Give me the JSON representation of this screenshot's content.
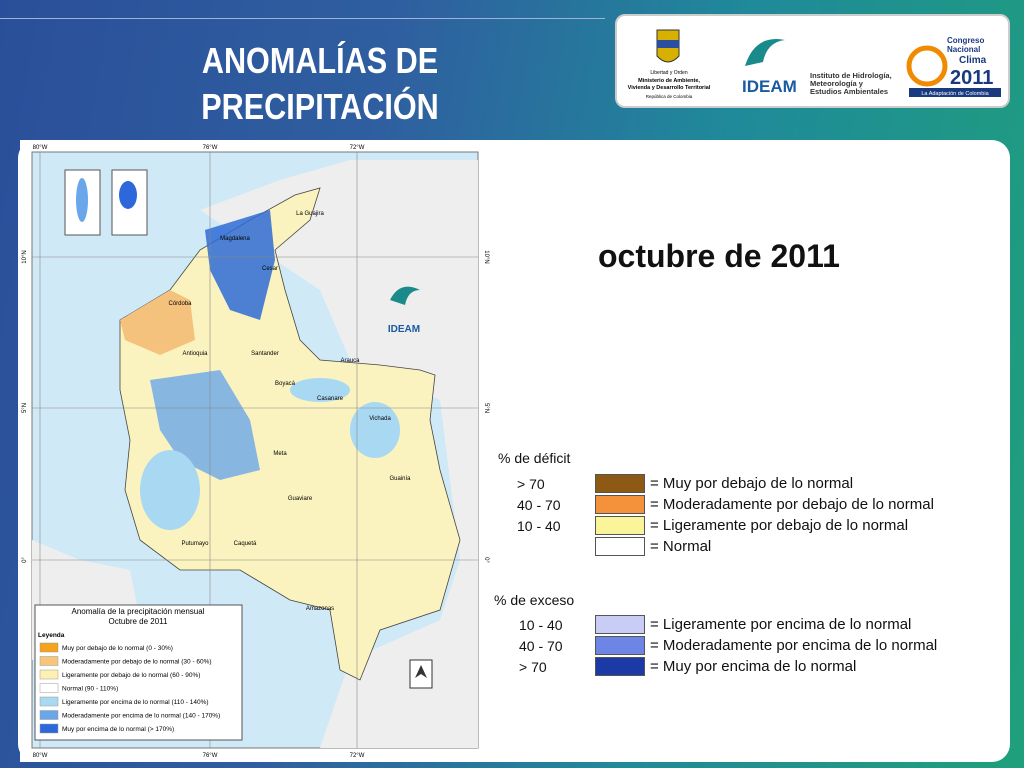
{
  "header": {
    "title_lines": [
      "ANOMALÍAS DE",
      "PRECIPITACIÓN"
    ]
  },
  "logos": {
    "ministry": [
      "Libertad y Orden",
      "Ministerio de Ambiente,",
      "Vivienda y Desarrollo Territorial",
      "República de Colombia"
    ],
    "ideam": "IDEAM",
    "ideam_name": [
      "Instituto de Hidrología,",
      "Meteorología y",
      "Estudios Ambientales"
    ],
    "congress": [
      "Congreso",
      "Nacional",
      "Clima",
      "2011",
      "La Adaptación de Colombia"
    ]
  },
  "period": "octubre de 2011",
  "deficit": {
    "heading": "% de déficit",
    "rows": [
      {
        "range": "> 70",
        "label": "= Muy por debajo de lo normal",
        "color": "#8c5a14"
      },
      {
        "range": "40 -  70",
        "label": "= Moderadamente por debajo de lo normal",
        "color": "#f3923a"
      },
      {
        "range": "10 -  40",
        "label": "= Ligeramente por debajo de lo normal",
        "color": "#fbf59a"
      },
      {
        "range": null,
        "label": "= Normal",
        "color": "#ffffff"
      }
    ]
  },
  "excess": {
    "heading": "% de exceso",
    "rows": [
      {
        "range": "10 -  40",
        "label": "= Ligeramente por encima de lo normal",
        "color": "#c9cdf6"
      },
      {
        "range": "40 -  70",
        "label": "= Moderadamente por encima de lo normal",
        "color": "#6d86e6"
      },
      {
        "range": "> 70",
        "label": "= Muy por encima de lo normal",
        "color": "#1c3aa6"
      }
    ]
  },
  "map": {
    "lon_labels": [
      "80°W",
      "76°W",
      "72°W"
    ],
    "lat_labels": [
      "10°N",
      "5°N",
      "0°"
    ],
    "logo": "IDEAM",
    "places": [
      "La Guajira",
      "Magdalena",
      "Cesar",
      "Córdoba",
      "Antioquia",
      "Santander",
      "Arauca",
      "Boyacá",
      "Casanare",
      "Vichada",
      "Meta",
      "Guaviare",
      "Guainía",
      "Caquetá",
      "Putumayo",
      "Amazonas"
    ],
    "inset_legend": {
      "title": "Anomalía de la precipitación mensual",
      "subtitle": "Octubre de 2011",
      "heading": "Leyenda",
      "items": [
        {
          "label": "Muy por debajo de lo normal (0 - 30%)",
          "color": "#f5a21e"
        },
        {
          "label": "Moderadamente por debajo de lo normal (30 - 60%)",
          "color": "#f8c67a"
        },
        {
          "label": "Ligeramente por debajo de lo normal (60 - 90%)",
          "color": "#fdf0b0"
        },
        {
          "label": "Normal (90 - 110%)",
          "color": "#ffffff"
        },
        {
          "label": "Ligeramente por encima de lo normal (110 - 140%)",
          "color": "#a9d9f2"
        },
        {
          "label": "Moderadamente por encima de lo normal (140 - 170%)",
          "color": "#6aa6ea"
        },
        {
          "label": "Muy por encima de lo normal (> 170%)",
          "color": "#2c68dc"
        }
      ]
    }
  }
}
